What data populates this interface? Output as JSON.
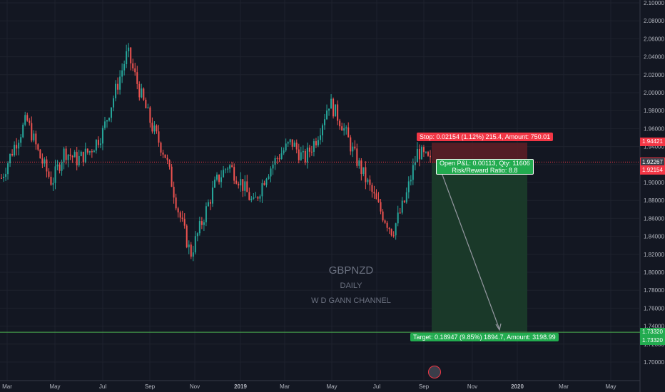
{
  "watermark": {
    "symbol": "GBPNZD",
    "interval": "DAILY",
    "study": "W D GANN CHANNEL"
  },
  "position": {
    "stop_label": "Stop: 0.02154 (1.12%) 215.4, Amount: 750.01",
    "pnl_line1": "Open P&L: 0.00113, Qty: 11606",
    "pnl_line2": "Risk/Reward Ratio: 8.8",
    "target_label": "Target: 0.18947 (9.85%) 1894.7, Amount: 3198.99",
    "entry": 1.92154,
    "stop": 1.94421,
    "target": 1.7332
  },
  "price_tags": {
    "stop": "1.94421",
    "current": "1.92267",
    "entry": "1.92154",
    "target_a": "1.73320",
    "target_b": "1.73320"
  },
  "y_axis_ticks": [
    "2.10000",
    "2.08000",
    "2.06000",
    "2.04000",
    "2.02000",
    "2.00000",
    "1.98000",
    "1.96000",
    "1.94000",
    "1.92000",
    "1.90000",
    "1.88000",
    "1.86000",
    "1.84000",
    "1.82000",
    "1.80000",
    "1.78000",
    "1.76000",
    "1.74000",
    "1.72000",
    "1.70000"
  ],
  "x_axis_ticks": [
    "Mar",
    "May",
    "Jul",
    "Sep",
    "Nov",
    "2019",
    "Mar",
    "May",
    "Jul",
    "Sep",
    "Nov",
    "2020",
    "Mar",
    "May"
  ],
  "colors": {
    "up": "#26a69a",
    "down": "#ef5350",
    "background": "#131722",
    "grid": "#1e222d",
    "stop_zone": "#5b1e26",
    "target_zone": "#1a3b2a",
    "green_line": "#4caf50"
  },
  "chart_data": {
    "type": "candlestick",
    "symbol": "GBPNZD",
    "interval": "DAILY",
    "ylim": [
      1.69,
      2.1
    ],
    "series_close_path": [
      [
        "Mar",
        1.905
      ],
      [
        "Apr",
        1.94
      ],
      [
        "Apr",
        1.97
      ],
      [
        "May",
        1.93
      ],
      [
        "May",
        1.9
      ],
      [
        "Jun",
        1.935
      ],
      [
        "Jul",
        1.925
      ],
      [
        "Jul",
        1.935
      ],
      [
        "Aug",
        1.955
      ],
      [
        "Aug",
        2.0
      ],
      [
        "Sep",
        2.045
      ],
      [
        "Sep",
        2.0
      ],
      [
        "Oct",
        1.96
      ],
      [
        "Oct",
        1.93
      ],
      [
        "Nov",
        1.87
      ],
      [
        "Nov",
        1.82
      ],
      [
        "Dec",
        1.86
      ],
      [
        "Dec",
        1.9
      ],
      [
        "2019",
        1.92
      ],
      [
        "Jan",
        1.9
      ],
      [
        "Feb",
        1.875
      ],
      [
        "Feb",
        1.91
      ],
      [
        "Mar",
        1.93
      ],
      [
        "Mar",
        1.945
      ],
      [
        "Apr",
        1.925
      ],
      [
        "Apr",
        1.95
      ],
      [
        "May",
        1.99
      ],
      [
        "May",
        1.965
      ],
      [
        "Jun",
        1.93
      ],
      [
        "Jun",
        1.9
      ],
      [
        "Jul",
        1.87
      ],
      [
        "Aug",
        1.845
      ],
      [
        "Aug",
        1.88
      ],
      [
        "Sep",
        1.935
      ],
      [
        "Sep",
        1.922
      ]
    ]
  }
}
